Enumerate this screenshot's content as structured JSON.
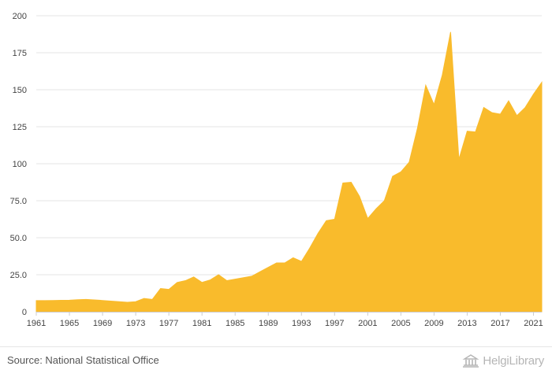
{
  "chart_data": {
    "type": "area",
    "title": "",
    "xlabel": "",
    "ylabel": "",
    "ylim": [
      0,
      200
    ],
    "yticks": [
      0,
      25,
      50,
      75,
      100,
      125,
      150,
      175,
      200
    ],
    "ytick_labels": [
      "0",
      "25.0",
      "50.0",
      "75.0",
      "100",
      "125",
      "150",
      "175",
      "200"
    ],
    "xlim": [
      1961,
      2022
    ],
    "xticks": [
      1961,
      1965,
      1969,
      1973,
      1977,
      1981,
      1985,
      1989,
      1993,
      1997,
      2001,
      2005,
      2009,
      2013,
      2017,
      2021
    ],
    "xtick_labels": [
      "1961",
      "1965",
      "1969",
      "1973",
      "1977",
      "1981",
      "1985",
      "1989",
      "1993",
      "1997",
      "2001",
      "2005",
      "2009",
      "2013",
      "2017",
      "2021"
    ],
    "grid": "horizontal",
    "series": [
      {
        "color": "#f9bb2c",
        "x": [
          1961,
          1962,
          1963,
          1964,
          1965,
          1966,
          1967,
          1968,
          1969,
          1970,
          1971,
          1972,
          1973,
          1974,
          1975,
          1976,
          1977,
          1978,
          1979,
          1980,
          1981,
          1982,
          1983,
          1984,
          1985,
          1986,
          1987,
          1988,
          1989,
          1990,
          1991,
          1992,
          1993,
          1994,
          1995,
          1996,
          1997,
          1998,
          1999,
          2000,
          2001,
          2002,
          2003,
          2004,
          2005,
          2006,
          2007,
          2008,
          2009,
          2010,
          2011,
          2012,
          2013,
          2014,
          2015,
          2016,
          2017,
          2018,
          2019,
          2020,
          2021,
          2022
        ],
        "values": [
          7.5,
          7.5,
          7.6,
          7.7,
          7.8,
          8.1,
          8.3,
          8.0,
          7.6,
          7.2,
          6.8,
          6.4,
          6.8,
          9.0,
          8.3,
          15.7,
          15.1,
          19.8,
          21.0,
          23.5,
          19.8,
          21.5,
          25.0,
          21.0,
          22.0,
          23.0,
          24.0,
          27.0,
          30.0,
          33.0,
          33.0,
          36.5,
          34.0,
          43.0,
          53.0,
          61.5,
          62.5,
          87.0,
          87.5,
          78.0,
          63.0,
          69.5,
          75.0,
          91.5,
          94.5,
          101.0,
          124.0,
          153.0,
          140.0,
          160.0,
          189.0,
          103.0,
          122.0,
          121.5,
          138.0,
          134.5,
          133.5,
          142.5,
          132.5,
          138.0,
          147.0,
          155.0
        ]
      }
    ]
  },
  "footer": {
    "source": "Source: National Statistical Office",
    "brand": "HelgiLibrary"
  }
}
